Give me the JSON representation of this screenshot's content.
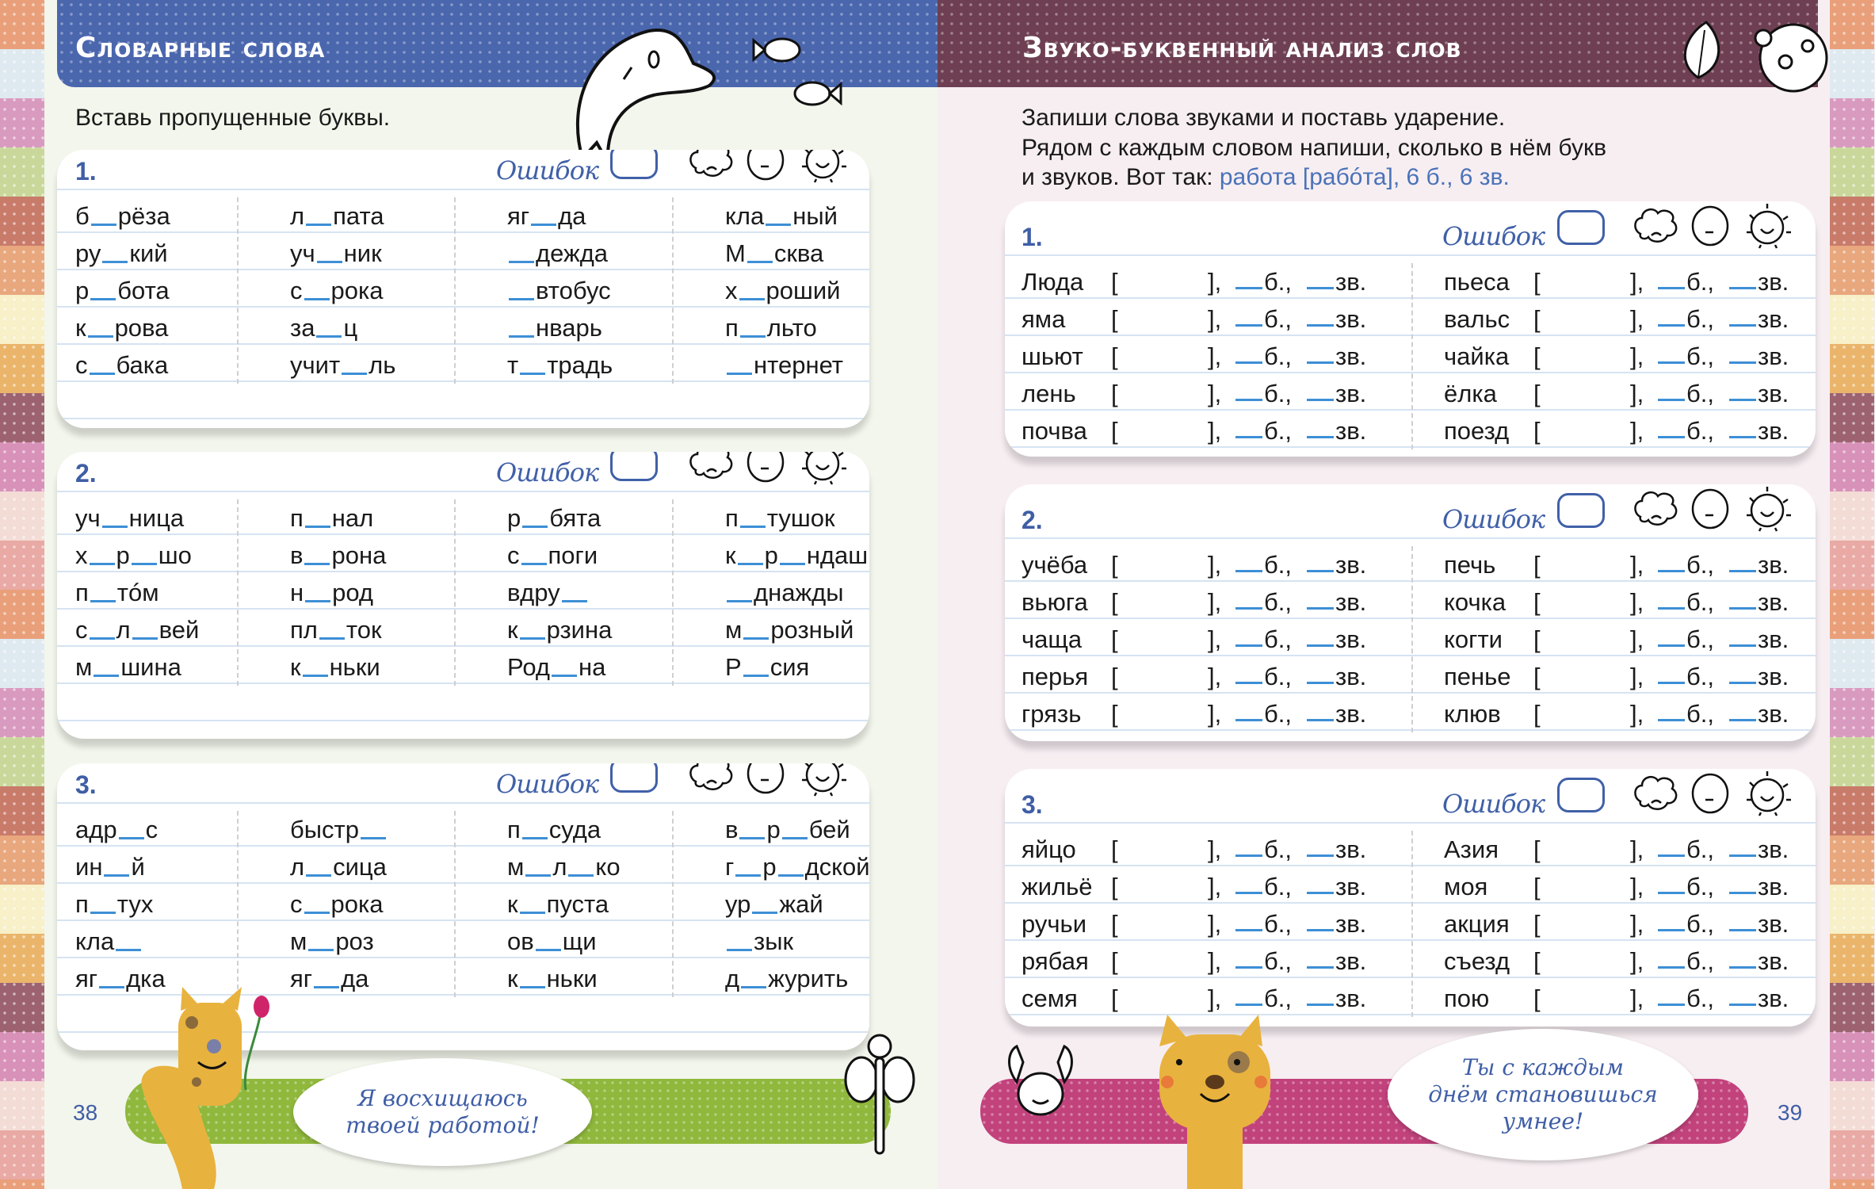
{
  "colors": {
    "left_band": "#4a66ad",
    "right_band": "#6e3f52",
    "accent_blue": "#3f5ea6",
    "blank_blue": "#3d8fd6",
    "green_pill": "#8fb83c",
    "pink_pill": "#c2427c"
  },
  "left": {
    "title": "Словарные слова",
    "instruction": "Вставь пропущенные буквы.",
    "page_number": "38",
    "bubble": [
      "Я восхищаюсь",
      "твоей работой!"
    ],
    "cards": [
      {
        "number": "1.",
        "errors_label": "Ошибок",
        "columns": [
          [
            "б_рёза",
            "ру_кий",
            "р_бота",
            "к_рова",
            "с_бака"
          ],
          [
            "л_пата",
            "уч_ник",
            "с_рока",
            "за_ц",
            "учит_ль"
          ],
          [
            "яг_да",
            "_дежда",
            "_втобус",
            "_нварь",
            "т_традь"
          ],
          [
            "кла_ный",
            "М_сква",
            "х_роший",
            "п_льто",
            "_нтернет"
          ]
        ]
      },
      {
        "number": "2.",
        "errors_label": "Ошибок",
        "columns": [
          [
            "уч_ница",
            "х_р_шо",
            "п_тóм",
            "с_л_вей",
            "м_шина"
          ],
          [
            "п_нал",
            "в_рона",
            "н_род",
            "пл_ток",
            "к_ньки"
          ],
          [
            "р_бята",
            "с_поги",
            "вдру_",
            "к_рзина",
            "Род_на"
          ],
          [
            "п_тушок",
            "к_р_ндаш",
            "_днажды",
            "м_розный",
            "Р_сия"
          ]
        ]
      },
      {
        "number": "3.",
        "errors_label": "Ошибок",
        "columns": [
          [
            "адр_с",
            "ин_й",
            "п_тух",
            "кла_",
            "яг_дка"
          ],
          [
            "быстр_",
            "л_сица",
            "с_рока",
            "м_роз",
            "яг_да"
          ],
          [
            "п_суда",
            "м_л_ко",
            "к_пуста",
            "ов_щи",
            "к_ньки"
          ],
          [
            "в_р_бей",
            "г_р_дской",
            "ур_жай",
            "_зык",
            "д_журить"
          ]
        ]
      }
    ]
  },
  "right": {
    "title": "Звуко-буквенный анализ слов",
    "instruction": [
      "Запиши слова звуками и поставь ударение.",
      "Рядом с каждым словом напиши, сколько в нём букв",
      "и звуков. Вот так: "
    ],
    "example": "работа [рабóта], 6 б., 6 зв.",
    "page_number": "39",
    "bubble": [
      "Ты с каждым",
      "днём становишься",
      "умнее!"
    ],
    "row_parts": {
      "open": "[",
      "close": "],",
      "letters": "б.,",
      "sounds": "зв."
    },
    "cards": [
      {
        "number": "1.",
        "errors_label": "Ошибок",
        "columns": [
          [
            "Люда",
            "яма",
            "шьют",
            "лень",
            "почва"
          ],
          [
            "пьеса",
            "вальс",
            "чайка",
            "ёлка",
            "поезд"
          ]
        ]
      },
      {
        "number": "2.",
        "errors_label": "Ошибок",
        "columns": [
          [
            "учёба",
            "вьюга",
            "чаща",
            "перья",
            "грязь"
          ],
          [
            "печь",
            "кочка",
            "когти",
            "пенье",
            "клюв"
          ]
        ]
      },
      {
        "number": "3.",
        "errors_label": "Ошибок",
        "columns": [
          [
            "яйцо",
            "жильё",
            "ручьи",
            "рябая",
            "семя"
          ],
          [
            "Азия",
            "моя",
            "акция",
            "съезд",
            "пою"
          ]
        ]
      }
    ]
  }
}
